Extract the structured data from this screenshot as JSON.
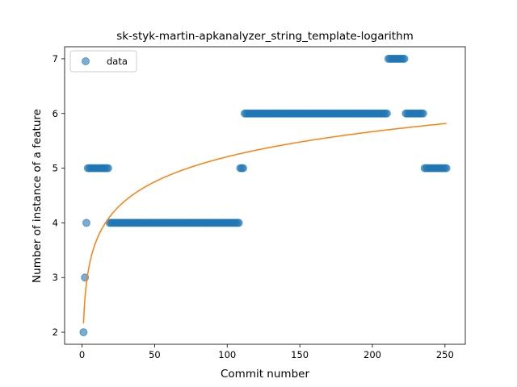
{
  "chart_data": {
    "type": "scatter",
    "title": "sk-styk-martin-apkanalyzer_string_template-logarithm",
    "xlabel": "Commit number",
    "ylabel": "Number of instance of a feature",
    "xlim": [
      -12,
      264
    ],
    "ylim": [
      1.78,
      7.22
    ],
    "xticks": [
      0,
      50,
      100,
      150,
      200,
      250
    ],
    "yticks": [
      2,
      3,
      4,
      5,
      6,
      7
    ],
    "grid": false,
    "legend": {
      "placement": "top-left",
      "entries": [
        "data"
      ]
    },
    "colors": {
      "data": "#1f77b4",
      "fit": "#ff7f0e"
    },
    "series": [
      {
        "name": "data",
        "kind": "scatter",
        "segments": [
          {
            "x_start": 1,
            "x_end": 1,
            "y": 2
          },
          {
            "x_start": 2,
            "x_end": 2,
            "y": 3
          },
          {
            "x_start": 3,
            "x_end": 3,
            "y": 4
          },
          {
            "x_start": 4,
            "x_end": 18,
            "y": 5
          },
          {
            "x_start": 19,
            "x_end": 108,
            "y": 4
          },
          {
            "x_start": 109,
            "x_end": 111,
            "y": 5
          },
          {
            "x_start": 112,
            "x_end": 210,
            "y": 6
          },
          {
            "x_start": 211,
            "x_end": 222,
            "y": 7
          },
          {
            "x_start": 223,
            "x_end": 235,
            "y": 6
          },
          {
            "x_start": 236,
            "x_end": 251,
            "y": 5
          }
        ]
      },
      {
        "kind": "line",
        "fit": {
          "model": "logarithmic",
          "a": 2.16,
          "b": 0.662,
          "x_start": 1,
          "x_end": 251
        }
      }
    ]
  }
}
